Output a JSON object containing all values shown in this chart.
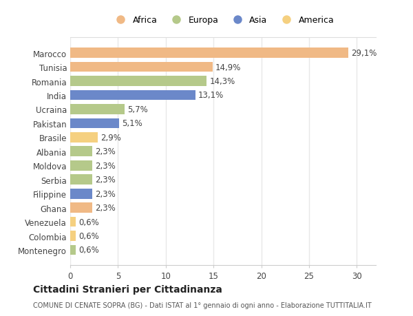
{
  "countries": [
    "Marocco",
    "Tunisia",
    "Romania",
    "India",
    "Ucraina",
    "Pakistan",
    "Brasile",
    "Albania",
    "Moldova",
    "Serbia",
    "Filippine",
    "Ghana",
    "Venezuela",
    "Colombia",
    "Montenegro"
  ],
  "values": [
    29.1,
    14.9,
    14.3,
    13.1,
    5.7,
    5.1,
    2.9,
    2.3,
    2.3,
    2.3,
    2.3,
    2.3,
    0.6,
    0.6,
    0.6
  ],
  "labels": [
    "29,1%",
    "14,9%",
    "14,3%",
    "13,1%",
    "5,7%",
    "5,1%",
    "2,9%",
    "2,3%",
    "2,3%",
    "2,3%",
    "2,3%",
    "2,3%",
    "0,6%",
    "0,6%",
    "0,6%"
  ],
  "colors": [
    "#f0b985",
    "#f0b985",
    "#b5c98a",
    "#6b88c9",
    "#b5c98a",
    "#6b88c9",
    "#f5d080",
    "#b5c98a",
    "#b5c98a",
    "#b5c98a",
    "#6b88c9",
    "#f0b985",
    "#f5d080",
    "#f5d080",
    "#b5c98a"
  ],
  "continent_colors": {
    "Africa": "#f0b985",
    "Europa": "#b5c98a",
    "Asia": "#6b88c9",
    "America": "#f5d080"
  },
  "xlim": [
    0,
    32
  ],
  "xticks": [
    0,
    5,
    10,
    15,
    20,
    25,
    30
  ],
  "title": "Cittadini Stranieri per Cittadinanza",
  "subtitle": "COMUNE DI CENATE SOPRA (BG) - Dati ISTAT al 1° gennaio di ogni anno - Elaborazione TUTTITALIA.IT",
  "bg_color": "#ffffff",
  "bar_height": 0.72,
  "grid_color": "#e8e8e8",
  "text_color": "#444444",
  "label_fontsize": 8.5,
  "tick_fontsize": 8.5
}
